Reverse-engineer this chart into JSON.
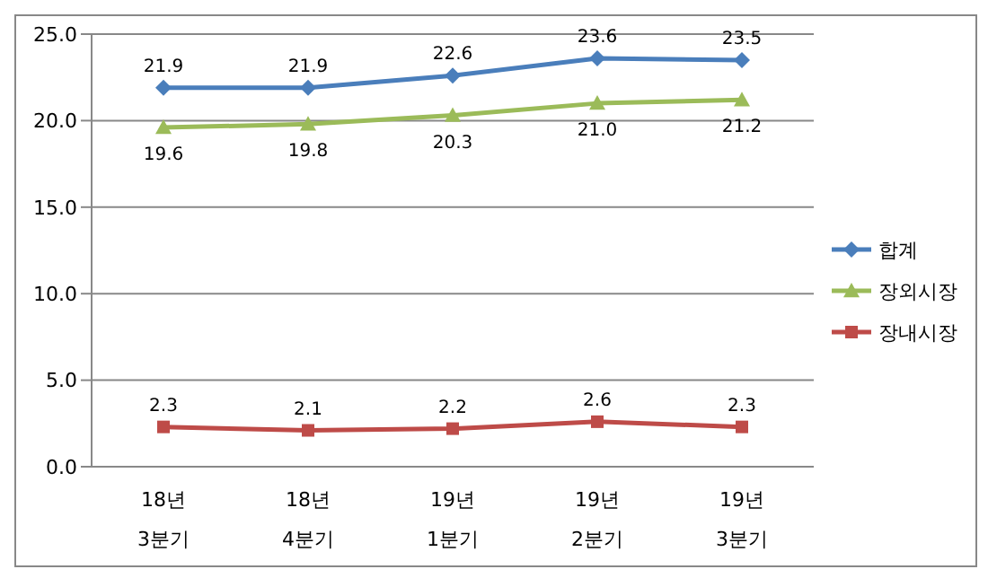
{
  "chart_data": {
    "type": "line",
    "categories": [
      "18년 3분기",
      "18년 4분기",
      "19년 1분기",
      "19년 2분기",
      "19년 3분기"
    ],
    "series": [
      {
        "name": "합계",
        "color": "#4a7ebb",
        "marker": "diamond",
        "values": [
          21.9,
          21.9,
          22.6,
          23.6,
          23.5
        ],
        "value_labels": [
          "21.9",
          "21.9",
          "22.6",
          "23.6",
          "23.5"
        ]
      },
      {
        "name": "장외시장",
        "color": "#9bbb59",
        "marker": "triangle",
        "values": [
          19.6,
          19.8,
          20.3,
          21.0,
          21.2
        ],
        "value_labels": [
          "19.6",
          "19.8",
          "20.3",
          "21.0",
          "21.2"
        ]
      },
      {
        "name": "장내시장",
        "color": "#be4b48",
        "marker": "square",
        "values": [
          2.3,
          2.1,
          2.2,
          2.6,
          2.3
        ],
        "value_labels": [
          "2.3",
          "2.1",
          "2.2",
          "2.6",
          "2.3"
        ]
      }
    ],
    "ylim": [
      0,
      25
    ],
    "yticks": [
      {
        "value": 0,
        "label": "0.0"
      },
      {
        "value": 5,
        "label": "5.0"
      },
      {
        "value": 10,
        "label": "10.0"
      },
      {
        "value": 15,
        "label": "15.0"
      },
      {
        "value": 20,
        "label": "20.0"
      },
      {
        "value": 25,
        "label": "25.0"
      }
    ],
    "grid": "y",
    "legend": "right"
  }
}
